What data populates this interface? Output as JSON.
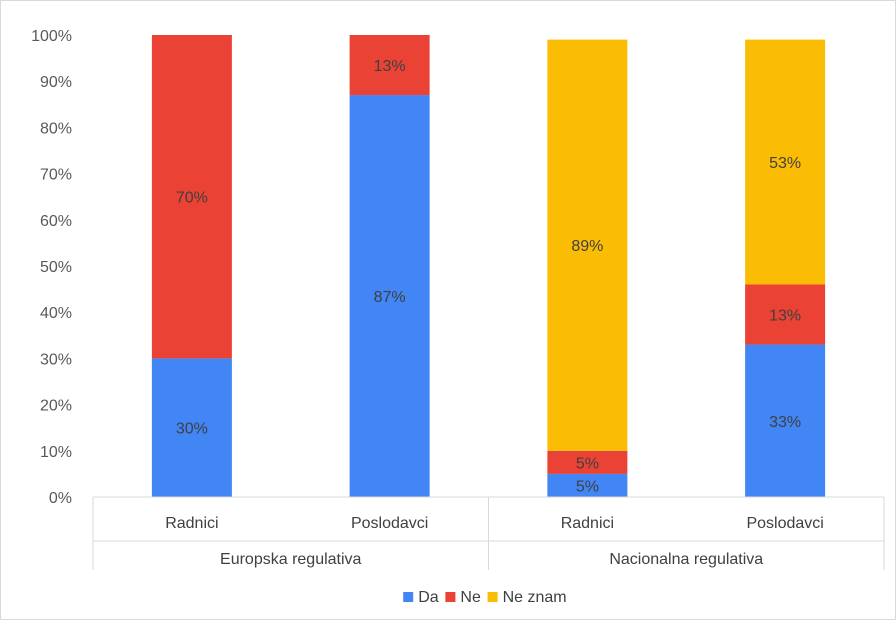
{
  "chart_data": {
    "type": "bar",
    "stacked": true,
    "normalized_percent": true,
    "categories": [
      "Radnici",
      "Poslodavci",
      "Radnici",
      "Poslodavci"
    ],
    "groups": [
      {
        "label": "Europska regulativa",
        "categories": [
          "Radnici",
          "Poslodavci"
        ]
      },
      {
        "label": "Nacionalna regulativa",
        "categories": [
          "Radnici",
          "Poslodavci"
        ]
      }
    ],
    "series": [
      {
        "name": "Da",
        "color": "#4285f4",
        "values": [
          30,
          87,
          5,
          33
        ],
        "labels": [
          "30%",
          "87%",
          "5%",
          "33%"
        ]
      },
      {
        "name": "Ne",
        "color": "#ea4335",
        "values": [
          70,
          13,
          5,
          13
        ],
        "labels": [
          "70%",
          "13%",
          "5%",
          "13%"
        ]
      },
      {
        "name": "Ne znam",
        "color": "#fbbc04",
        "values": [
          0,
          0,
          89,
          53
        ],
        "labels": [
          "",
          "",
          "89%",
          "53%"
        ]
      }
    ],
    "yticks": [
      "0%",
      "10%",
      "20%",
      "30%",
      "40%",
      "50%",
      "60%",
      "70%",
      "80%",
      "90%",
      "100%"
    ],
    "ylim": [
      0,
      100
    ],
    "legend_position": "bottom",
    "grid": false
  }
}
